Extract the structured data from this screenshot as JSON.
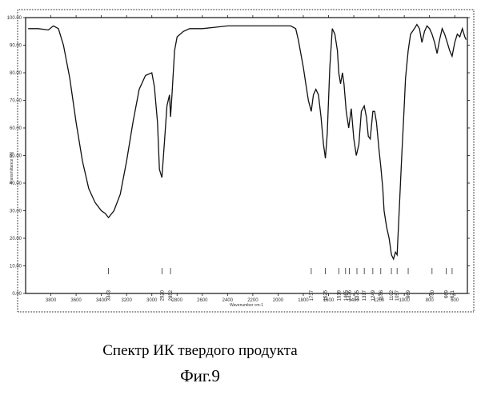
{
  "chart_data": {
    "type": "line",
    "title": "",
    "xlabel": "Wavenumber cm-1",
    "ylabel": "Transmittance [%]",
    "xlim": [
      4000,
      500
    ],
    "ylim": [
      0,
      100
    ],
    "x_ticks_bottom": [
      "3800",
      "3600",
      "3400",
      "3200",
      "3000",
      "2800",
      "2600",
      "2400",
      "2200",
      "2000",
      "1800",
      "1600",
      "1400",
      "1200",
      "1000",
      "800",
      "600"
    ],
    "y_ticks": [
      "0.00",
      "10.00",
      "20.00",
      "30.00",
      "40.00",
      "50.00",
      "60.00",
      "70.00",
      "80.00",
      "90.00",
      "100.00"
    ],
    "series": [
      {
        "x": [
          3980,
          3900,
          3820,
          3780,
          3740,
          3700,
          3650,
          3600,
          3550,
          3500,
          3450,
          3400,
          3370,
          3343,
          3300,
          3250,
          3200,
          3150,
          3100,
          3050,
          3000,
          2980,
          2955,
          2940,
          2920,
          2900,
          2880,
          2860,
          2852,
          2840,
          2820,
          2800,
          2750,
          2700,
          2600,
          2500,
          2400,
          2300,
          2200,
          2100,
          2000,
          1950,
          1900,
          1860,
          1840,
          1800,
          1780,
          1760,
          1737,
          1720,
          1700,
          1680,
          1660,
          1640,
          1625,
          1610,
          1590,
          1570,
          1550,
          1530,
          1519,
          1505,
          1490,
          1478,
          1460,
          1440,
          1420,
          1400,
          1380,
          1360,
          1340,
          1317,
          1300,
          1285,
          1270,
          1255,
          1249,
          1235,
          1220,
          1200,
          1186,
          1170,
          1160,
          1140,
          1120,
          1102,
          1085,
          1070,
          1057,
          1040,
          1020,
          1000,
          990,
          969,
          950,
          920,
          900,
          880,
          860,
          840,
          820,
          800,
          780,
          760,
          740,
          720,
          700,
          680,
          660,
          640,
          621,
          600,
          580,
          560,
          540,
          520,
          510
        ],
        "y": [
          96,
          96,
          95.5,
          97,
          96,
          90,
          78,
          62,
          48,
          38,
          33,
          30,
          29,
          27.5,
          30,
          36,
          48,
          62,
          74,
          79,
          80,
          75,
          62,
          45,
          42,
          55,
          68,
          72,
          64,
          72,
          88,
          93,
          95,
          96,
          96,
          96.5,
          97,
          97,
          97,
          97,
          97,
          97,
          97,
          96,
          92,
          82,
          76,
          70,
          66,
          72,
          74,
          72,
          64,
          54,
          49,
          58,
          82,
          96,
          94,
          88,
          80,
          76,
          80,
          76,
          66,
          60,
          67,
          56,
          50,
          54,
          66,
          68,
          64,
          57,
          56,
          63,
          66,
          66,
          62,
          52,
          46,
          38,
          30,
          24,
          20,
          14,
          12.5,
          15,
          14,
          30,
          50,
          68,
          78,
          88,
          94,
          96,
          97.5,
          96,
          91,
          95,
          97,
          96,
          94,
          91,
          87,
          92,
          96,
          94,
          91,
          88,
          86,
          91,
          94,
          93,
          96,
          93,
          92
        ]
      }
    ],
    "peak_labels": [
      "3343",
      "2920",
      "2852",
      "1737",
      "1625",
      "1519",
      "1465",
      "1436",
      "1375",
      "1317",
      "1249",
      "1186",
      "1102",
      "1057",
      "969",
      "780",
      "669",
      "621"
    ]
  },
  "caption": "Спектр ИК твердого продукта",
  "figure_label": "Фиг.9"
}
